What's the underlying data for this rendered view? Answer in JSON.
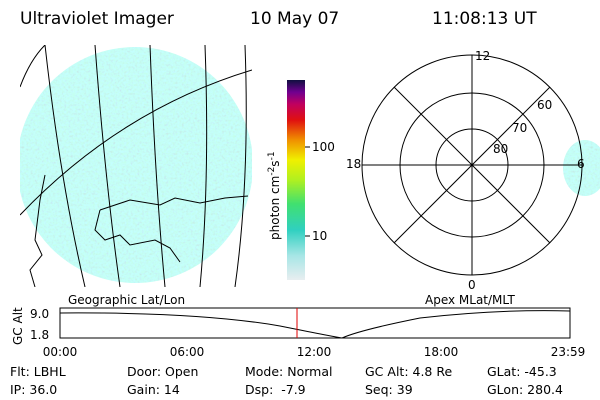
{
  "header": {
    "instrument": "Ultraviolet Imager",
    "date": "10 May 07",
    "time": "11:08:13 UT"
  },
  "colorbar": {
    "label_base": "photon cm",
    "label_exp1": "-2",
    "label_mid": "s",
    "label_exp2": "-1",
    "ticks": [
      "100",
      "10"
    ]
  },
  "panels": {
    "left_label": "Geographic Lat/Lon",
    "right_label": "Apex MLat/MLT"
  },
  "polar": {
    "mlt_labels": [
      "12",
      "18",
      "6",
      "0"
    ],
    "lat_labels": [
      "60",
      "70",
      "80"
    ]
  },
  "altitude": {
    "axis_label": "GC Alt",
    "yticks": [
      "9.0",
      "1.8"
    ],
    "xticks": [
      "00:00",
      "06:00",
      "12:00",
      "18:00",
      "23:59"
    ]
  },
  "info": {
    "rows": [
      [
        "Flt: LBHL",
        "Door: Open",
        "Mode: Normal",
        "GC Alt: 4.8 Re",
        "GLat: -45.3"
      ],
      [
        "IP: 36.0",
        "Gain: 14",
        "Dsp:  -7.9",
        "Seq: 39",
        "GLon: 280.4"
      ]
    ]
  }
}
